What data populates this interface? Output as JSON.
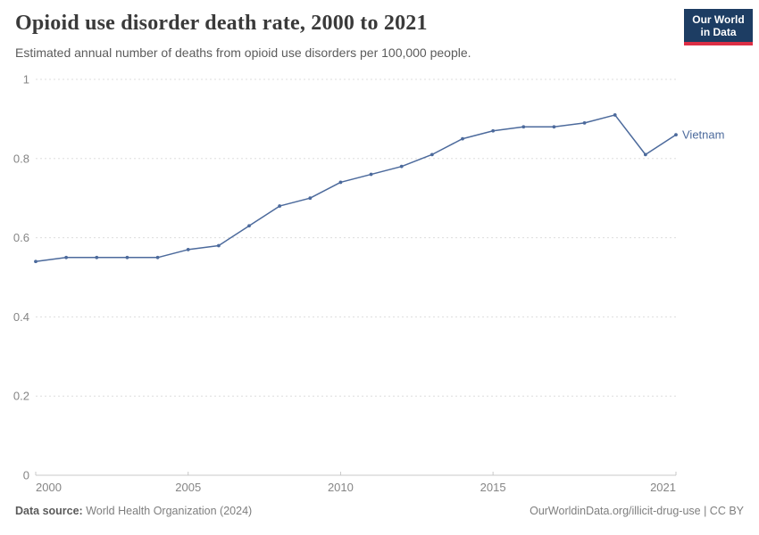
{
  "header": {
    "title": "Opioid use disorder death rate, 2000 to 2021",
    "subtitle": "Estimated annual number of deaths from opioid use disorders per 100,000 people.",
    "logo": {
      "line1": "Our World",
      "line2": "in Data",
      "bg_color": "#1d3d63",
      "accent_color": "#dc2e45"
    }
  },
  "chart_data": {
    "type": "line",
    "title": "Opioid use disorder death rate, 2000 to 2021",
    "xlabel": "",
    "ylabel": "Estimated annual deaths from opioid use disorders per 100,000 people",
    "x": [
      2000,
      2001,
      2002,
      2003,
      2004,
      2005,
      2006,
      2007,
      2008,
      2009,
      2010,
      2011,
      2012,
      2013,
      2014,
      2015,
      2016,
      2017,
      2018,
      2019,
      2020,
      2021
    ],
    "series": [
      {
        "name": "Vietnam",
        "color": "#4C6A9C",
        "values": [
          0.54,
          0.55,
          0.55,
          0.55,
          0.55,
          0.57,
          0.58,
          0.63,
          0.68,
          0.7,
          0.74,
          0.76,
          0.78,
          0.81,
          0.85,
          0.87,
          0.88,
          0.88,
          0.89,
          0.91,
          0.81,
          0.86
        ]
      }
    ],
    "xlim": [
      2000,
      2021
    ],
    "ylim": [
      0,
      1
    ],
    "xticks": [
      2000,
      2005,
      2010,
      2015,
      2021
    ],
    "yticks": [
      0,
      0.2,
      0.4,
      0.6,
      0.8,
      1
    ],
    "grid": "horizontal-dashed",
    "legend_position": "end-of-line",
    "grid_color": "#dddddd",
    "axis_color": "#c8c8c8",
    "tick_label_color": "#858585"
  },
  "footer": {
    "datasource_label": "Data source:",
    "datasource_value": " World Health Organization (2024)",
    "link": "OurWorldinData.org/illicit-drug-use | CC BY"
  }
}
